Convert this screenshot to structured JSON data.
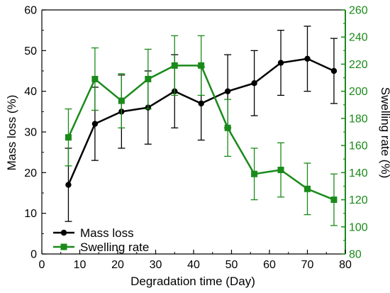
{
  "chart_data": {
    "type": "line",
    "title": "",
    "xlabel": "Degradation time (Day)",
    "ylabel": "Mass loss (%)",
    "y2label": "Swelling rate (%)",
    "xlim": [
      0,
      80
    ],
    "ylim": [
      0,
      60
    ],
    "y2lim": [
      80,
      260
    ],
    "xticks": [
      0,
      10,
      20,
      30,
      40,
      50,
      60,
      70,
      80
    ],
    "yticks": [
      0,
      10,
      20,
      30,
      40,
      50,
      60
    ],
    "y2ticks": [
      80,
      100,
      120,
      140,
      160,
      180,
      200,
      220,
      240,
      260
    ],
    "grid": false,
    "legend_position": "bottom-left",
    "series": [
      {
        "name": "Mass loss",
        "axis": "left",
        "color": "#000000",
        "marker": "circle",
        "x": [
          7,
          14,
          21,
          28,
          35,
          42,
          49,
          56,
          63,
          70,
          77
        ],
        "y": [
          17,
          32,
          35,
          36,
          40,
          37,
          40,
          42,
          47,
          48,
          45
        ],
        "error": [
          9,
          9,
          9,
          9,
          9,
          9,
          9,
          8,
          8,
          8,
          8
        ]
      },
      {
        "name": "Swelling rate",
        "axis": "right",
        "color": "#1a8a1a",
        "marker": "square",
        "x": [
          7,
          14,
          21,
          28,
          35,
          42,
          49,
          56,
          63,
          70,
          77
        ],
        "y": [
          166,
          209,
          193,
          209,
          219,
          219,
          173,
          139,
          142,
          128,
          120
        ],
        "error": [
          21,
          23,
          20,
          22,
          22,
          22,
          21,
          19,
          20,
          19,
          19
        ]
      }
    ]
  }
}
